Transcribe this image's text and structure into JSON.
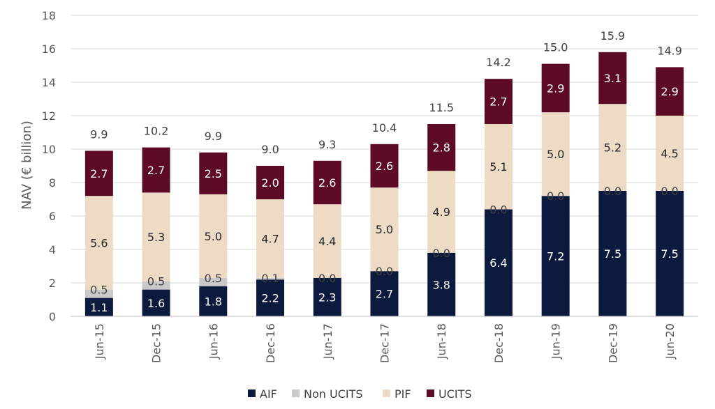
{
  "chart_data": {
    "type": "bar",
    "stacked": true,
    "categories": [
      "Jun-15",
      "Dec-15",
      "Jun-16",
      "Dec-16",
      "Jun-17",
      "Dec-17",
      "Jun-18",
      "Dec-18",
      "Jun-19",
      "Dec-19",
      "Jun-20"
    ],
    "series": [
      {
        "name": "AIF",
        "color": "#0c1a3d",
        "label_color": "#ffffff",
        "values": [
          1.1,
          1.6,
          1.8,
          2.2,
          2.3,
          2.7,
          3.8,
          6.4,
          7.2,
          7.5,
          7.5
        ],
        "labels": [
          "1.1",
          "1.6",
          "1.8",
          "2.2",
          "2.3",
          "2.7",
          "3.8",
          "6.4",
          "7.2",
          "7.5",
          "7.5"
        ]
      },
      {
        "name": "Non UCITS",
        "color": "#c9c9c9",
        "label_color": "#404040",
        "values": [
          0.5,
          0.5,
          0.5,
          0.1,
          0.0,
          0.0,
          0.0,
          0.0,
          0.0,
          0.0,
          0.0
        ],
        "labels": [
          "0.5",
          "0.5",
          "0.5",
          "0.1",
          "0.0",
          "0.0",
          "0.0",
          "0.0",
          "0.0",
          "0.0",
          "0.0"
        ]
      },
      {
        "name": "PIF",
        "color": "#eedbc6",
        "label_color": "#262626",
        "values": [
          5.6,
          5.3,
          5.0,
          4.7,
          4.4,
          5.0,
          4.9,
          5.1,
          5.0,
          5.2,
          4.5
        ],
        "labels": [
          "5.6",
          "5.3",
          "5.0",
          "4.7",
          "4.4",
          "5.0",
          "4.9",
          "5.1",
          "5.0",
          "5.2",
          "4.5"
        ]
      },
      {
        "name": "UCITS",
        "color": "#5c0a26",
        "label_color": "#ffffff",
        "values": [
          2.7,
          2.7,
          2.5,
          2.0,
          2.6,
          2.6,
          2.8,
          2.7,
          2.9,
          3.1,
          2.9
        ],
        "labels": [
          "2.7",
          "2.7",
          "2.5",
          "2.0",
          "2.6",
          "2.6",
          "2.8",
          "2.7",
          "2.9",
          "3.1",
          "2.9"
        ]
      }
    ],
    "totals": [
      "9.9",
      "10.2",
      "9.9",
      "9.0",
      "9.3",
      "10.4",
      "11.5",
      "14.2",
      "15.0",
      "15.9",
      "14.9"
    ],
    "ylabel": "NAV (€ billion)",
    "xlabel": "",
    "ylim": [
      0,
      18
    ],
    "yticks": [
      "0",
      "2",
      "4",
      "6",
      "8",
      "10",
      "12",
      "14",
      "16",
      "18"
    ],
    "grid": true,
    "legend_position": "bottom",
    "colors": {
      "grid": "#d9d9d9",
      "axis_text": "#595959"
    }
  }
}
